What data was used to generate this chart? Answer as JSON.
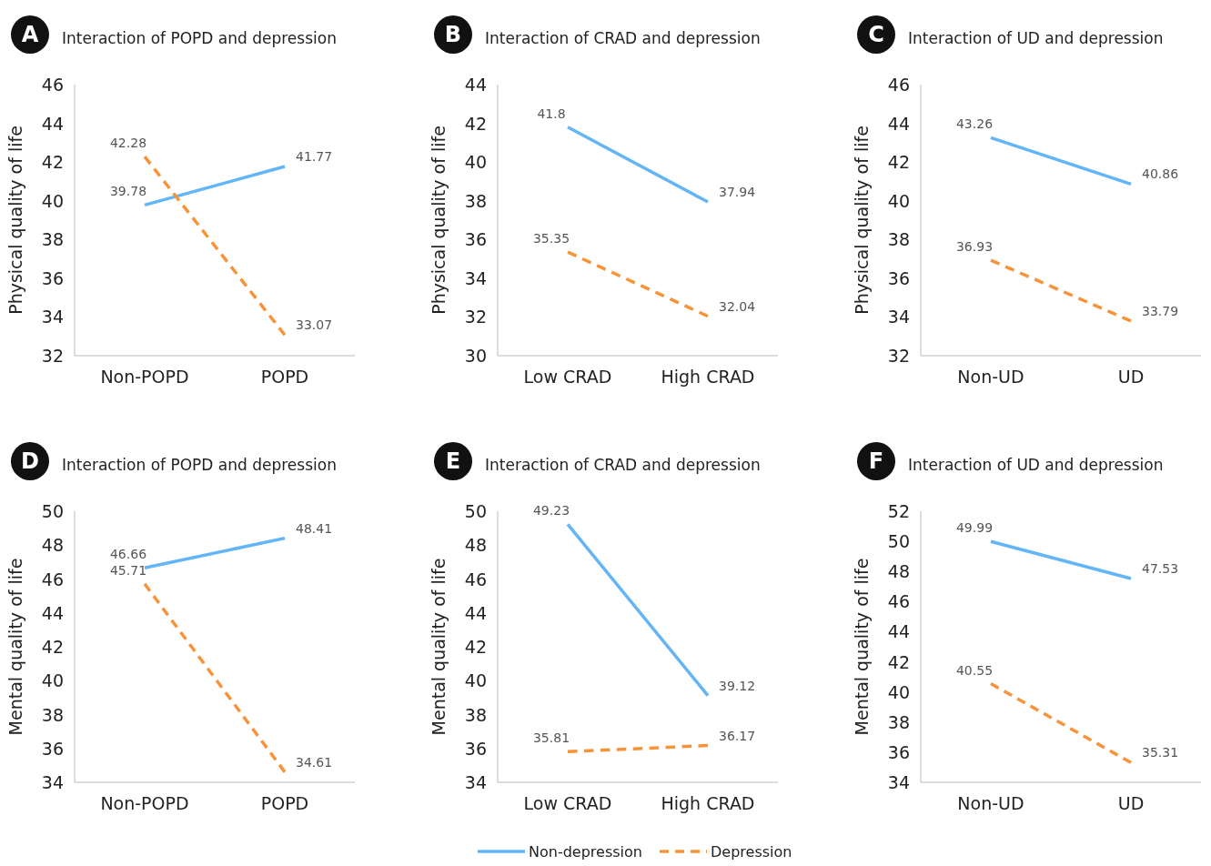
{
  "chart_data": [
    {
      "type": "line",
      "title": "Interaction of POPD and depression",
      "annotations": [
        "A"
      ],
      "ylabel": "Physical quality of life",
      "categories": [
        "Non-POPD",
        "POPD"
      ],
      "ylim": [
        32,
        46
      ],
      "yticks": [
        32,
        34,
        36,
        38,
        40,
        42,
        44,
        46
      ],
      "data_labels": true,
      "series": [
        {
          "color": "#64b5f6",
          "line_style": "solid",
          "values": [
            39.78,
            41.77
          ]
        },
        {
          "color": "#f7943b",
          "line_style": "dashed",
          "values": [
            42.28,
            33.07
          ]
        }
      ]
    },
    {
      "type": "line",
      "title": "Interaction of CRAD and depression",
      "annotations": [
        "B"
      ],
      "ylabel": "Physical quality of life",
      "categories": [
        "Low CRAD",
        "High CRAD"
      ],
      "ylim": [
        30,
        44
      ],
      "yticks": [
        30,
        32,
        34,
        36,
        38,
        40,
        42,
        44
      ],
      "data_labels": true,
      "series": [
        {
          "color": "#64b5f6",
          "line_style": "solid",
          "values": [
            41.8,
            37.94
          ]
        },
        {
          "color": "#f7943b",
          "line_style": "dashed",
          "values": [
            35.35,
            32.04
          ]
        }
      ]
    },
    {
      "type": "line",
      "title": "Interaction of UD and depression",
      "annotations": [
        "C"
      ],
      "ylabel": "Physical quality of life",
      "categories": [
        "Non-UD",
        "UD"
      ],
      "ylim": [
        32,
        46
      ],
      "yticks": [
        32,
        34,
        36,
        38,
        40,
        42,
        44,
        46
      ],
      "data_labels": true,
      "series": [
        {
          "color": "#64b5f6",
          "line_style": "solid",
          "values": [
            43.26,
            40.86
          ]
        },
        {
          "color": "#f7943b",
          "line_style": "dashed",
          "values": [
            36.93,
            33.79
          ]
        }
      ]
    },
    {
      "type": "line",
      "title": "Interaction of POPD and depression",
      "annotations": [
        "D"
      ],
      "ylabel": "Mental quality of life",
      "categories": [
        "Non-POPD",
        "POPD"
      ],
      "ylim": [
        34,
        50
      ],
      "yticks": [
        34,
        36,
        38,
        40,
        42,
        44,
        46,
        48,
        50
      ],
      "data_labels": true,
      "series": [
        {
          "color": "#64b5f6",
          "line_style": "solid",
          "values": [
            46.66,
            48.41
          ]
        },
        {
          "color": "#f7943b",
          "line_style": "dashed",
          "values": [
            45.71,
            34.61
          ]
        }
      ]
    },
    {
      "type": "line",
      "title": "Interaction of CRAD and depression",
      "annotations": [
        "E"
      ],
      "ylabel": "Mental quality of life",
      "categories": [
        "Low CRAD",
        "High CRAD"
      ],
      "ylim": [
        34,
        50
      ],
      "yticks": [
        34,
        36,
        38,
        40,
        42,
        44,
        46,
        48,
        50
      ],
      "data_labels": true,
      "legend": "bottom",
      "series": [
        {
          "name": "Non-depression",
          "color": "#64b5f6",
          "line_style": "solid",
          "values": [
            49.23,
            39.12
          ]
        },
        {
          "name": "Depression",
          "color": "#f7943b",
          "line_style": "dashed",
          "values": [
            35.81,
            36.17
          ]
        }
      ]
    },
    {
      "type": "line",
      "title": "Interaction of UD and depression",
      "annotations": [
        "F"
      ],
      "ylabel": "Mental quality of life",
      "categories": [
        "Non-UD",
        "UD"
      ],
      "ylim": [
        34,
        52
      ],
      "yticks": [
        34,
        36,
        38,
        40,
        42,
        44,
        46,
        48,
        50,
        52
      ],
      "data_labels": true,
      "series": [
        {
          "color": "#64b5f6",
          "line_style": "solid",
          "values": [
            49.99,
            47.53
          ]
        },
        {
          "color": "#f7943b",
          "line_style": "dashed",
          "values": [
            40.55,
            35.31
          ]
        }
      ]
    }
  ]
}
